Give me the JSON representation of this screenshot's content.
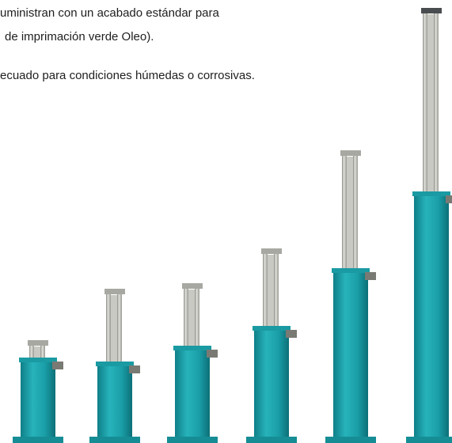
{
  "text": {
    "lines": [
      "uministran con un acabado estándar para",
      " de imprimación verde Oleo).",
      "ecuado para condiciones húmedas o corrosivas."
    ]
  }
}
